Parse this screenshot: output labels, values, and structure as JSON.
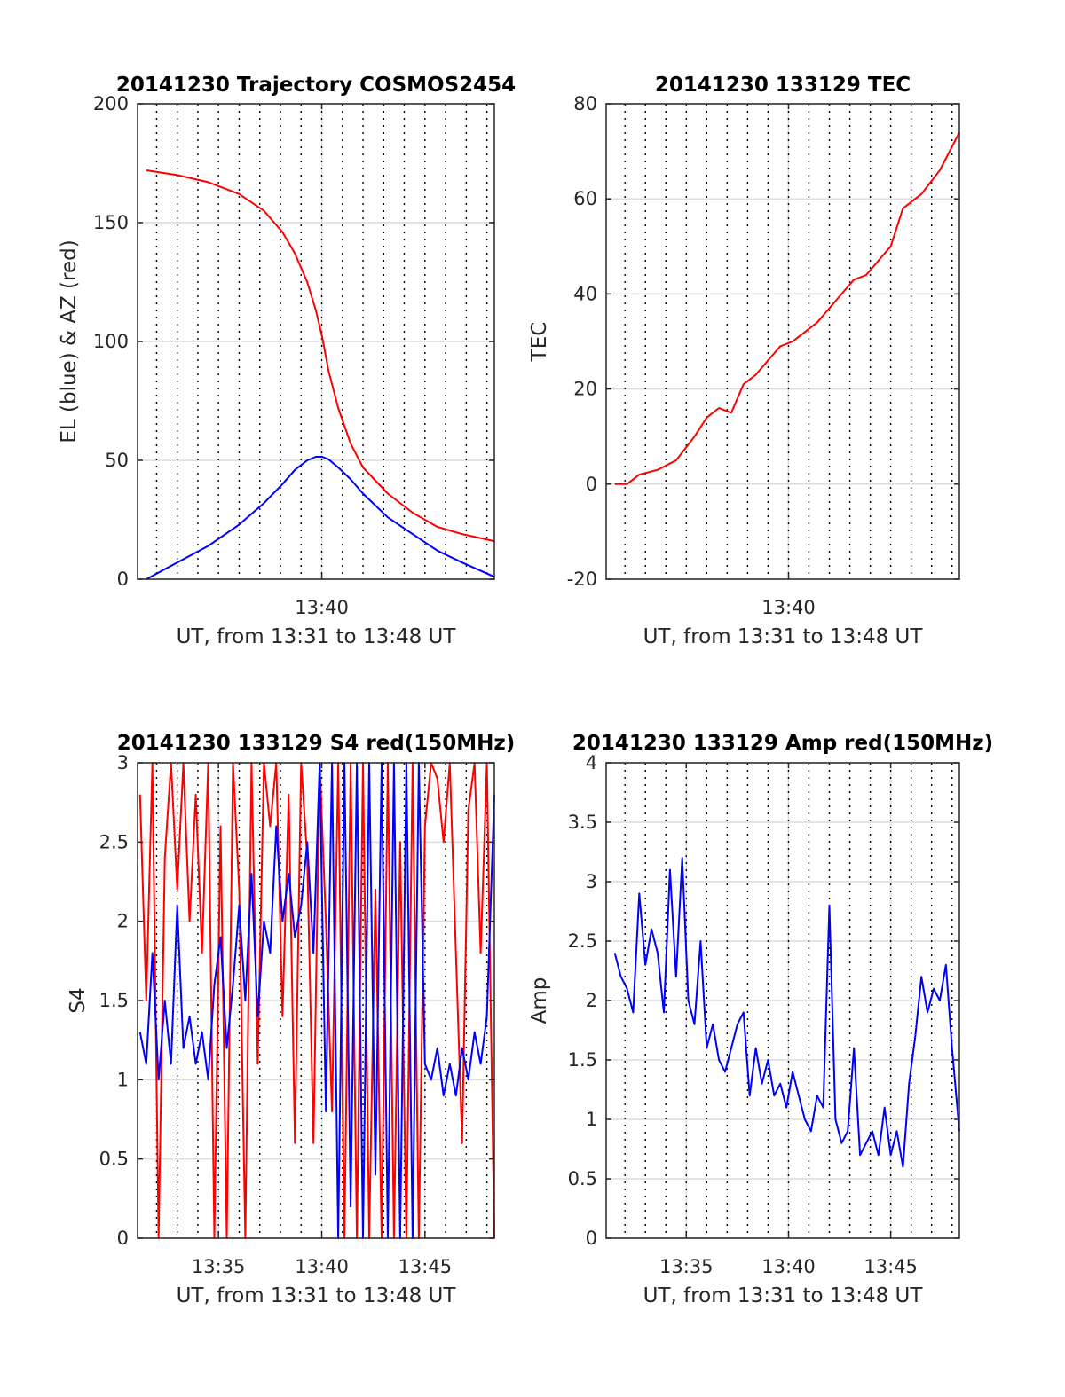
{
  "colors": {
    "red": "#ff0000",
    "blue": "#0000ff",
    "grid": "#dcdcdc",
    "axis": "#262626"
  },
  "chart_data": [
    {
      "type": "line",
      "title": "20141230 Trajectory COSMOS2454",
      "xlabel": "UT, from 13:31 to 13:48 UT",
      "ylabel": "EL (blue) & AZ (red)",
      "xlim": [
        13.518,
        13.806
      ],
      "ylim": [
        0,
        200
      ],
      "xticks": [
        13.6667
      ],
      "xtick_labels": [
        "13:40"
      ],
      "yticks": [
        0,
        50,
        100,
        150,
        200
      ],
      "ytick_labels": [
        "0",
        "50",
        "100",
        "150",
        "200"
      ],
      "grid": true,
      "dotted_minute_lines": true,
      "series": [
        {
          "color": "#ff0000",
          "x": [
            13.525,
            13.55,
            13.575,
            13.6,
            13.62,
            13.635,
            13.645,
            13.655,
            13.662,
            13.667,
            13.672,
            13.68,
            13.69,
            13.7,
            13.72,
            13.74,
            13.76,
            13.78,
            13.806
          ],
          "y": [
            172,
            170,
            167,
            162,
            155,
            146,
            137,
            125,
            113,
            102,
            88,
            72,
            57,
            47,
            36,
            28,
            22,
            19,
            16
          ]
        },
        {
          "color": "#0000ff",
          "x": [
            13.525,
            13.55,
            13.575,
            13.6,
            13.62,
            13.635,
            13.645,
            13.655,
            13.662,
            13.667,
            13.672,
            13.68,
            13.69,
            13.7,
            13.72,
            13.74,
            13.76,
            13.78,
            13.806
          ],
          "y": [
            0,
            7,
            14,
            23,
            32,
            40,
            46,
            50,
            51.5,
            51.5,
            50.5,
            47,
            42,
            36,
            26,
            19,
            12,
            7,
            1
          ]
        }
      ]
    },
    {
      "type": "line",
      "title": "20141230 133129 TEC",
      "xlabel": "UT, from 13:31 to 13:48 UT",
      "ylabel": "TEC",
      "xlim": [
        13.518,
        13.806
      ],
      "ylim": [
        -20,
        80
      ],
      "xticks": [
        13.6667
      ],
      "xtick_labels": [
        "13:40"
      ],
      "yticks": [
        -20,
        0,
        20,
        40,
        60,
        80
      ],
      "ytick_labels": [
        "-20",
        "0",
        "20",
        "40",
        "60",
        "80"
      ],
      "grid": true,
      "dotted_minute_lines": true,
      "series": [
        {
          "color": "#ff0000",
          "x": [
            13.525,
            13.535,
            13.545,
            13.56,
            13.575,
            13.59,
            13.6,
            13.61,
            13.62,
            13.63,
            13.64,
            13.65,
            13.66,
            13.67,
            13.68,
            13.69,
            13.7,
            13.71,
            13.72,
            13.73,
            13.74,
            13.75,
            13.76,
            13.775,
            13.79,
            13.806
          ],
          "y": [
            0,
            0,
            2,
            3,
            5,
            10,
            14,
            16,
            15,
            21,
            23,
            26,
            29,
            30,
            32,
            34,
            37,
            40,
            43,
            44,
            47,
            50,
            58,
            61,
            66,
            74
          ]
        }
      ]
    },
    {
      "type": "line",
      "title": "20141230 133129 S4 red(150MHz)",
      "xlabel": "UT, from 13:31 to 13:48 UT",
      "ylabel": "S4",
      "xlim": [
        13.518,
        13.806
      ],
      "ylim": [
        0,
        3
      ],
      "xticks": [
        13.5833,
        13.6667,
        13.75
      ],
      "xtick_labels": [
        "13:35",
        "13:40",
        "13:45"
      ],
      "yticks": [
        0,
        0.5,
        1,
        1.5,
        2,
        2.5,
        3
      ],
      "ytick_labels": [
        "0",
        "0.5",
        "1",
        "1.5",
        "2",
        "2.5",
        "3"
      ],
      "grid": true,
      "dotted_minute_lines": true,
      "series": [
        {
          "color": "#ff0000",
          "x": [
            13.52,
            13.525,
            13.53,
            13.535,
            13.54,
            13.545,
            13.55,
            13.555,
            13.56,
            13.565,
            13.57,
            13.575,
            13.58,
            13.585,
            13.59,
            13.595,
            13.6,
            13.605,
            13.61,
            13.615,
            13.62,
            13.625,
            13.63,
            13.635,
            13.64,
            13.645,
            13.65,
            13.655,
            13.66,
            13.665,
            13.67,
            13.675,
            13.68,
            13.685,
            13.69,
            13.695,
            13.7,
            13.705,
            13.71,
            13.715,
            13.72,
            13.725,
            13.73,
            13.735,
            13.74,
            13.745,
            13.75,
            13.755,
            13.76,
            13.765,
            13.77,
            13.775,
            13.78,
            13.785,
            13.79,
            13.795,
            13.8,
            13.806
          ],
          "y": [
            2.8,
            1.5,
            3,
            0,
            2.4,
            3,
            2.2,
            3,
            2.0,
            2.8,
            1.8,
            3,
            0,
            2.6,
            0,
            3,
            2.2,
            0,
            3,
            1.1,
            3,
            2.6,
            3,
            1.4,
            2.8,
            0.6,
            3,
            2.4,
            0.6,
            3,
            2.0,
            0.8,
            3,
            0,
            3,
            0,
            3,
            0,
            2.2,
            0,
            3,
            0,
            2.5,
            0,
            3,
            0,
            2.6,
            3,
            2.9,
            2.5,
            3,
            1.8,
            0.6,
            2.7,
            3,
            1.8,
            3,
            0
          ]
        },
        {
          "color": "#0000ff",
          "x": [
            13.52,
            13.525,
            13.53,
            13.535,
            13.54,
            13.545,
            13.55,
            13.555,
            13.56,
            13.565,
            13.57,
            13.575,
            13.58,
            13.585,
            13.59,
            13.595,
            13.6,
            13.605,
            13.61,
            13.615,
            13.62,
            13.625,
            13.63,
            13.635,
            13.64,
            13.645,
            13.65,
            13.655,
            13.66,
            13.665,
            13.67,
            13.675,
            13.68,
            13.685,
            13.69,
            13.695,
            13.7,
            13.705,
            13.71,
            13.715,
            13.72,
            13.725,
            13.73,
            13.735,
            13.74,
            13.745,
            13.75,
            13.755,
            13.76,
            13.765,
            13.77,
            13.775,
            13.78,
            13.785,
            13.79,
            13.795,
            13.8,
            13.806
          ],
          "y": [
            1.3,
            1.1,
            1.8,
            1.0,
            1.5,
            1.1,
            2.1,
            1.2,
            1.4,
            1.1,
            1.3,
            1.0,
            1.6,
            1.9,
            1.2,
            1.6,
            2.1,
            1.5,
            2.3,
            1.4,
            2.0,
            1.8,
            2.6,
            2.0,
            2.3,
            1.9,
            2.1,
            2.5,
            1.8,
            3.0,
            0.8,
            3.0,
            0,
            3.0,
            0.2,
            3.0,
            0,
            3.0,
            0.4,
            3.0,
            0,
            3.0,
            0,
            3.0,
            0,
            3.0,
            1.1,
            1.0,
            1.2,
            0.9,
            1.1,
            0.9,
            1.2,
            1.0,
            1.3,
            1.1,
            1.4,
            2.8
          ]
        }
      ]
    },
    {
      "type": "line",
      "title": "20141230 133129 Amp red(150MHz)",
      "xlabel": "UT, from 13:31 to 13:48 UT",
      "ylabel": "Amp",
      "xlim": [
        13.518,
        13.806
      ],
      "ylim": [
        0,
        4
      ],
      "xticks": [
        13.5833,
        13.6667,
        13.75
      ],
      "xtick_labels": [
        "13:35",
        "13:40",
        "13:45"
      ],
      "yticks": [
        0,
        0.5,
        1,
        1.5,
        2,
        2.5,
        3,
        3.5,
        4
      ],
      "ytick_labels": [
        "0",
        "0.5",
        "1",
        "1.5",
        "2",
        "2.5",
        "3",
        "3.5",
        "4"
      ],
      "grid": true,
      "dotted_minute_lines": true,
      "series": [
        {
          "color": "#0000ff",
          "x": [
            13.525,
            13.53,
            13.535,
            13.54,
            13.545,
            13.55,
            13.555,
            13.56,
            13.565,
            13.57,
            13.575,
            13.58,
            13.585,
            13.59,
            13.595,
            13.6,
            13.605,
            13.61,
            13.615,
            13.62,
            13.625,
            13.63,
            13.635,
            13.64,
            13.645,
            13.65,
            13.655,
            13.66,
            13.665,
            13.67,
            13.675,
            13.68,
            13.685,
            13.69,
            13.695,
            13.7,
            13.705,
            13.71,
            13.715,
            13.72,
            13.725,
            13.73,
            13.735,
            13.74,
            13.745,
            13.75,
            13.755,
            13.76,
            13.765,
            13.77,
            13.775,
            13.78,
            13.785,
            13.79,
            13.795,
            13.8,
            13.806
          ],
          "y": [
            2.4,
            2.2,
            2.1,
            1.9,
            2.9,
            2.3,
            2.6,
            2.4,
            1.9,
            3.1,
            2.2,
            3.2,
            2.0,
            1.8,
            2.5,
            1.6,
            1.8,
            1.5,
            1.4,
            1.6,
            1.8,
            1.9,
            1.2,
            1.6,
            1.3,
            1.5,
            1.2,
            1.3,
            1.1,
            1.4,
            1.2,
            1.0,
            0.9,
            1.2,
            1.1,
            2.8,
            1.0,
            0.8,
            0.9,
            1.6,
            0.7,
            0.8,
            0.9,
            0.7,
            1.1,
            0.7,
            0.9,
            0.6,
            1.3,
            1.7,
            2.2,
            1.9,
            2.1,
            2.0,
            2.3,
            1.6,
            0.9
          ]
        }
      ]
    }
  ]
}
